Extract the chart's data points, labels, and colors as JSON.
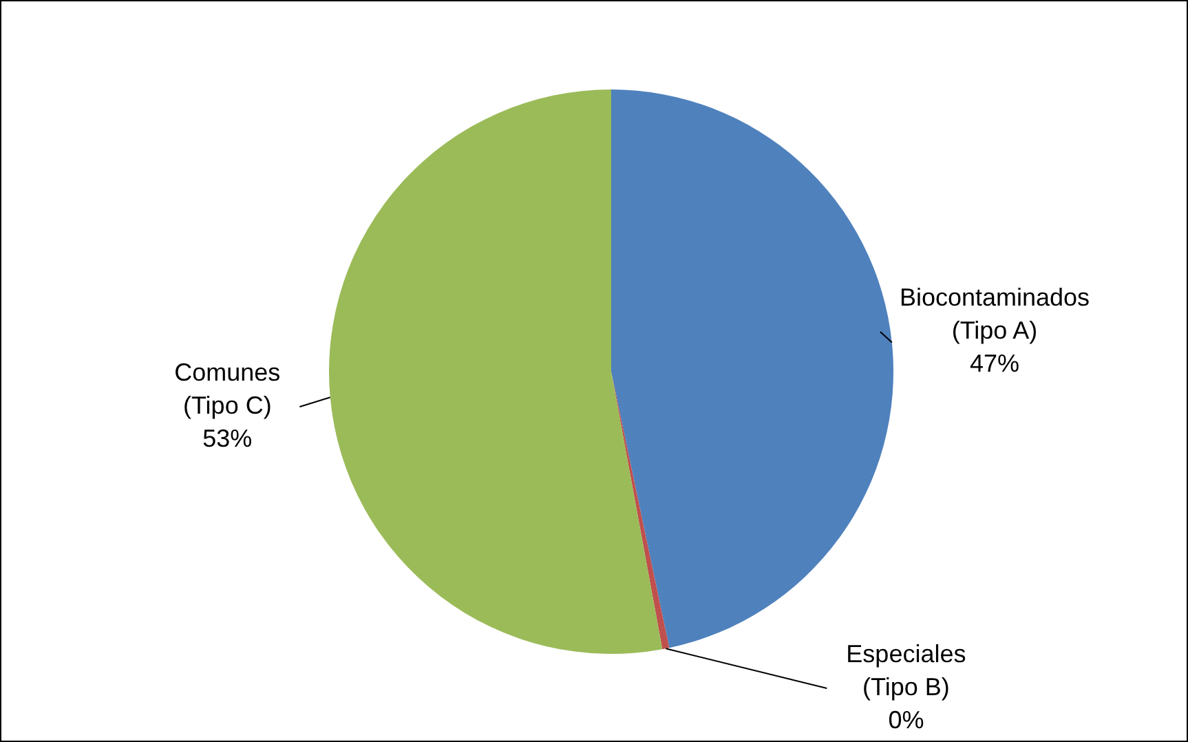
{
  "chart_data": {
    "type": "pie",
    "categories": [
      "Biocontaminados (Tipo A)",
      "Especiales (Tipo B)",
      "Comunes (Tipo C)"
    ],
    "values": [
      46.7,
      0.4,
      52.9
    ],
    "colors": [
      "#4f81bd",
      "#c0504d",
      "#9bbb59"
    ],
    "value_labels": [
      "47%",
      "0%",
      "53%"
    ],
    "legend": false
  }
}
